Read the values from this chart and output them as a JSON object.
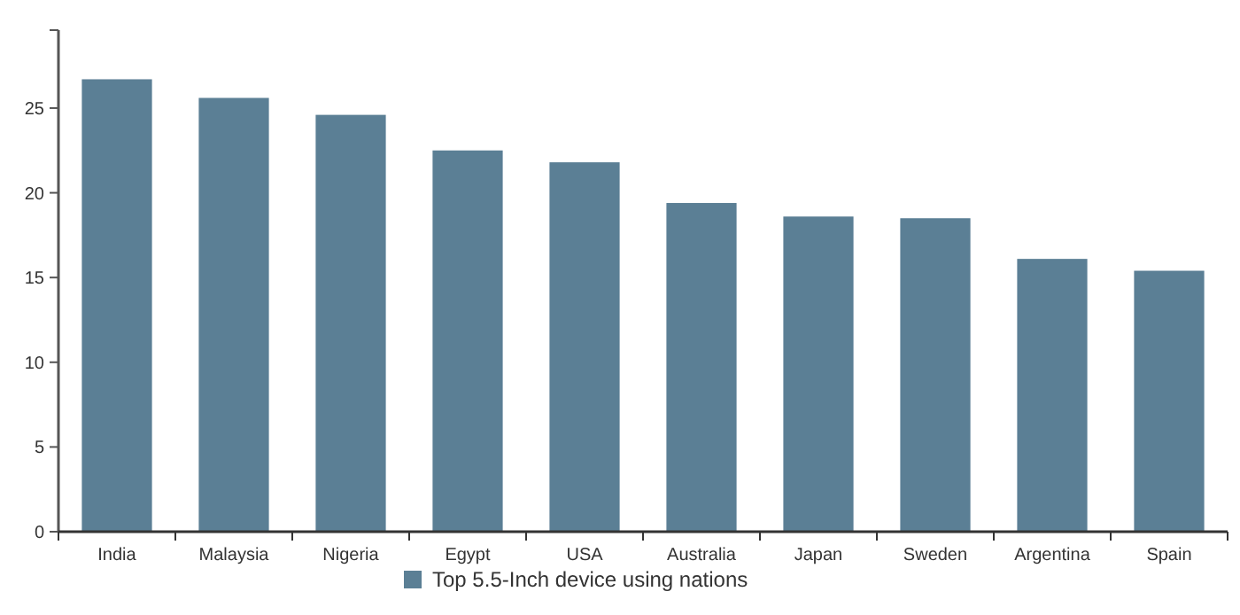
{
  "chart_data": {
    "type": "bar",
    "categories": [
      "India",
      "Malaysia",
      "Nigeria",
      "Egypt",
      "USA",
      "Australia",
      "Japan",
      "Sweden",
      "Argentina",
      "Spain"
    ],
    "series": [
      {
        "name": "Top 5.5-Inch device using nations",
        "color": "#5b7f95",
        "values": [
          26.7,
          25.6,
          24.6,
          22.5,
          21.8,
          19.4,
          18.6,
          18.5,
          16.1,
          15.4
        ]
      }
    ],
    "ylim": [
      0,
      29.6
    ],
    "yticks": [
      0,
      5,
      10,
      15,
      20,
      25
    ],
    "grid": false,
    "legend": "bottom"
  }
}
